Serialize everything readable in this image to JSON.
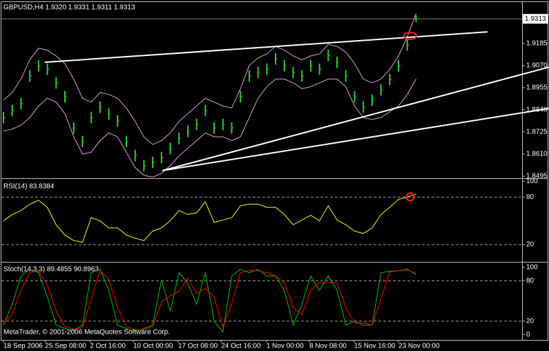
{
  "chart_data": [
    {
      "type": "ohlc",
      "title": "GBPUSD,H4  1.9320 1.9331 1.9311 1.9313",
      "x": [
        0,
        2,
        4,
        6,
        8,
        10,
        12,
        14,
        16,
        18,
        20,
        22,
        24,
        26,
        28,
        30,
        32,
        34,
        36,
        38,
        40,
        42,
        44,
        46,
        48,
        50,
        52,
        54,
        56,
        58,
        60,
        62,
        64,
        66,
        68,
        70,
        72,
        74,
        76,
        78,
        80,
        82,
        84,
        86,
        88,
        90,
        92,
        94
      ],
      "xlim": [
        0,
        118
      ],
      "ylim": [
        1.8488,
        1.94
      ],
      "yticks": [
        1.9185,
        {
          "value": 1.907,
          "label": "1.9070"
        },
        1.8955,
        {
          "value": 1.884,
          "label": "1.8840"
        },
        1.8725,
        {
          "value": 1.861,
          "label": "1.8610"
        },
        1.8495
      ],
      "current_price": 1.9313,
      "color": "#33cc33",
      "high": [
        1.883,
        1.8866,
        1.8902,
        1.9046,
        1.9099,
        1.9081,
        1.901,
        1.8938,
        1.8776,
        1.8705,
        1.883,
        1.8884,
        1.8848,
        1.8812,
        1.8705,
        1.8633,
        1.8579,
        1.8597,
        1.8622,
        1.8669,
        1.8722,
        1.8758,
        1.8794,
        1.8866,
        1.8776,
        1.8794,
        1.8776,
        1.8938,
        1.9046,
        1.9064,
        1.9081,
        1.9135,
        1.9099,
        1.9064,
        1.9046,
        1.9099,
        1.9081,
        1.9153,
        1.9117,
        1.9046,
        1.8938,
        1.8884,
        1.892,
        1.8974,
        1.9028,
        1.9099,
        1.9207,
        1.9331
      ],
      "low": [
        1.877,
        1.8806,
        1.8842,
        1.8986,
        1.9039,
        1.9021,
        1.895,
        1.8878,
        1.8716,
        1.8645,
        1.877,
        1.8824,
        1.8788,
        1.8752,
        1.8645,
        1.8573,
        1.8519,
        1.8537,
        1.8562,
        1.8609,
        1.8662,
        1.8698,
        1.8734,
        1.8806,
        1.8716,
        1.8734,
        1.8716,
        1.8878,
        1.8986,
        1.9004,
        1.9021,
        1.9075,
        1.9039,
        1.9004,
        1.8986,
        1.9039,
        1.9021,
        1.9093,
        1.9057,
        1.8986,
        1.8878,
        1.8824,
        1.886,
        1.8914,
        1.8968,
        1.9039,
        1.9147,
        1.9295
      ],
      "close": [
        1.88,
        1.8836,
        1.8872,
        1.9016,
        1.9069,
        1.9051,
        1.898,
        1.8908,
        1.8746,
        1.8675,
        1.88,
        1.8854,
        1.8818,
        1.8782,
        1.8675,
        1.8603,
        1.8549,
        1.8567,
        1.8592,
        1.8639,
        1.8692,
        1.8728,
        1.8764,
        1.8836,
        1.8746,
        1.8764,
        1.8746,
        1.8908,
        1.9016,
        1.9034,
        1.9051,
        1.9105,
        1.9069,
        1.9034,
        1.9016,
        1.9069,
        1.9051,
        1.9123,
        1.9087,
        1.9016,
        1.8908,
        1.8854,
        1.889,
        1.8944,
        1.8998,
        1.9069,
        1.9177,
        1.9313
      ],
      "bands": {
        "color": "#dda0dd",
        "upper": [
          1.889,
          1.893,
          1.9,
          1.91,
          1.916,
          1.915,
          1.912,
          1.908,
          1.9,
          1.89,
          1.888,
          1.893,
          1.892,
          1.89,
          1.885,
          1.878,
          1.87,
          1.866,
          1.868,
          1.872,
          1.878,
          1.882,
          1.886,
          1.89,
          1.888,
          1.886,
          1.885,
          1.895,
          1.907,
          1.911,
          1.913,
          1.917,
          1.915,
          1.912,
          1.91,
          1.912,
          1.913,
          1.918,
          1.917,
          1.914,
          1.908,
          1.9,
          1.898,
          1.9,
          1.905,
          1.912,
          1.922,
          1.934
        ],
        "lower": [
          1.873,
          1.874,
          1.876,
          1.88,
          1.886,
          1.89,
          1.888,
          1.882,
          1.87,
          1.861,
          1.862,
          1.868,
          1.872,
          1.87,
          1.862,
          1.854,
          1.85,
          1.849,
          1.851,
          1.855,
          1.86,
          1.864,
          1.868,
          1.872,
          1.87,
          1.87,
          1.868,
          1.87,
          1.88,
          1.89,
          1.896,
          1.9,
          1.9,
          1.898,
          1.895,
          1.896,
          1.898,
          1.9,
          1.9,
          1.896,
          1.886,
          1.88,
          1.879,
          1.88,
          1.883,
          1.886,
          1.892,
          1.9
        ]
      },
      "trendlines": {
        "color": "#ffffff",
        "lines": [
          {
            "x": [
              9.4,
              110.3
            ],
            "y": [
              1.9087,
              1.9245
            ]
          },
          {
            "x": [
              36.2,
              124.3
            ],
            "y": [
              1.8524,
              1.9062
            ]
          },
          {
            "x": [
              37,
              124.3
            ],
            "y": [
              1.8527,
              1.8847
            ]
          }
        ]
      }
    },
    {
      "type": "line",
      "title": "RSI(14) 83.8384",
      "x": [
        0,
        2,
        4,
        6,
        8,
        10,
        12,
        14,
        16,
        18,
        20,
        22,
        24,
        26,
        28,
        30,
        32,
        34,
        36,
        38,
        40,
        42,
        44,
        46,
        48,
        50,
        52,
        54,
        56,
        58,
        60,
        62,
        64,
        66,
        68,
        70,
        72,
        74,
        76,
        78,
        80,
        82,
        84,
        86,
        88,
        90,
        92,
        94
      ],
      "xlim": [
        0,
        118
      ],
      "ylim": [
        -1,
        102
      ],
      "yticks": [
        100,
        80,
        20
      ],
      "levels": [
        80,
        20
      ],
      "series": [
        {
          "color": "#ffff00",
          "values": [
            50,
            58,
            63,
            71,
            76,
            67,
            45,
            32,
            25,
            23,
            54,
            50,
            41,
            41,
            32,
            28,
            25,
            37,
            41,
            50,
            63,
            58,
            60,
            74,
            48,
            51,
            54,
            69,
            71,
            71,
            67,
            67,
            58,
            45,
            51,
            57,
            50,
            69,
            51,
            45,
            37,
            34,
            41,
            58,
            67,
            77,
            80,
            83.8384
          ]
        }
      ]
    },
    {
      "type": "line",
      "title": "Stoch(14,3,3) 89.4855 90.8963",
      "x": [
        0,
        2,
        4,
        6,
        8,
        10,
        12,
        14,
        16,
        18,
        20,
        22,
        24,
        26,
        28,
        30,
        32,
        34,
        36,
        38,
        40,
        42,
        44,
        46,
        48,
        50,
        52,
        54,
        56,
        58,
        60,
        62,
        64,
        66,
        68,
        70,
        72,
        74,
        76,
        78,
        80,
        82,
        84,
        86,
        88,
        90,
        92,
        94
      ],
      "xlim": [
        0,
        118
      ],
      "ylim": [
        -8,
        106
      ],
      "yticks": [
        100,
        80,
        20,
        0
      ],
      "levels": [
        80,
        20
      ],
      "xticks": [
        {
          "value": 0,
          "label": "18 Sep 2006"
        },
        {
          "value": 9.5,
          "label": "25 Sep 08:00"
        },
        {
          "value": 19.7,
          "label": "2 Oct 16:00"
        },
        {
          "value": 29.6,
          "label": "10 Oct 00:00"
        },
        {
          "value": 39.8,
          "label": "17 Oct 08:00"
        },
        {
          "value": 49.6,
          "label": "24 Oct 16:00"
        },
        {
          "value": 59.9,
          "label": "1 Nov 00:00"
        },
        {
          "value": 69.7,
          "label": "8 Nov 08:00"
        },
        {
          "value": 79.9,
          "label": "15 Nov 16:00"
        },
        {
          "value": 90,
          "label": "23 Nov 00:00"
        }
      ],
      "series": [
        {
          "color": "#00c000",
          "values": [
            14,
            45,
            87,
            97,
            92,
            56,
            14,
            9,
            6,
            14,
            92,
            97,
            66,
            14,
            9,
            4,
            9,
            14,
            81,
            35,
            92,
            76,
            45,
            92,
            20,
            4,
            87,
            97,
            92,
            97,
            87,
            87,
            66,
            14,
            45,
            87,
            66,
            87,
            66,
            14,
            20,
            14,
            14,
            92,
            94,
            95,
            97,
            89.4855
          ]
        },
        {
          "color": "#ff0000",
          "values": [
            18,
            30,
            66,
            92,
            95,
            74,
            35,
            12,
            8,
            10,
            53,
            95,
            82,
            40,
            12,
            7,
            7,
            12,
            48,
            58,
            64,
            84,
            61,
            69,
            56,
            12,
            46,
            92,
            95,
            95,
            92,
            87,
            77,
            40,
            30,
            66,
            77,
            77,
            77,
            40,
            17,
            17,
            14,
            53,
            93,
            95,
            96,
            90.8963
          ]
        }
      ]
    }
  ],
  "footer": "MetaTrader, © 2001-2006 MetaQuotes Software Corp."
}
